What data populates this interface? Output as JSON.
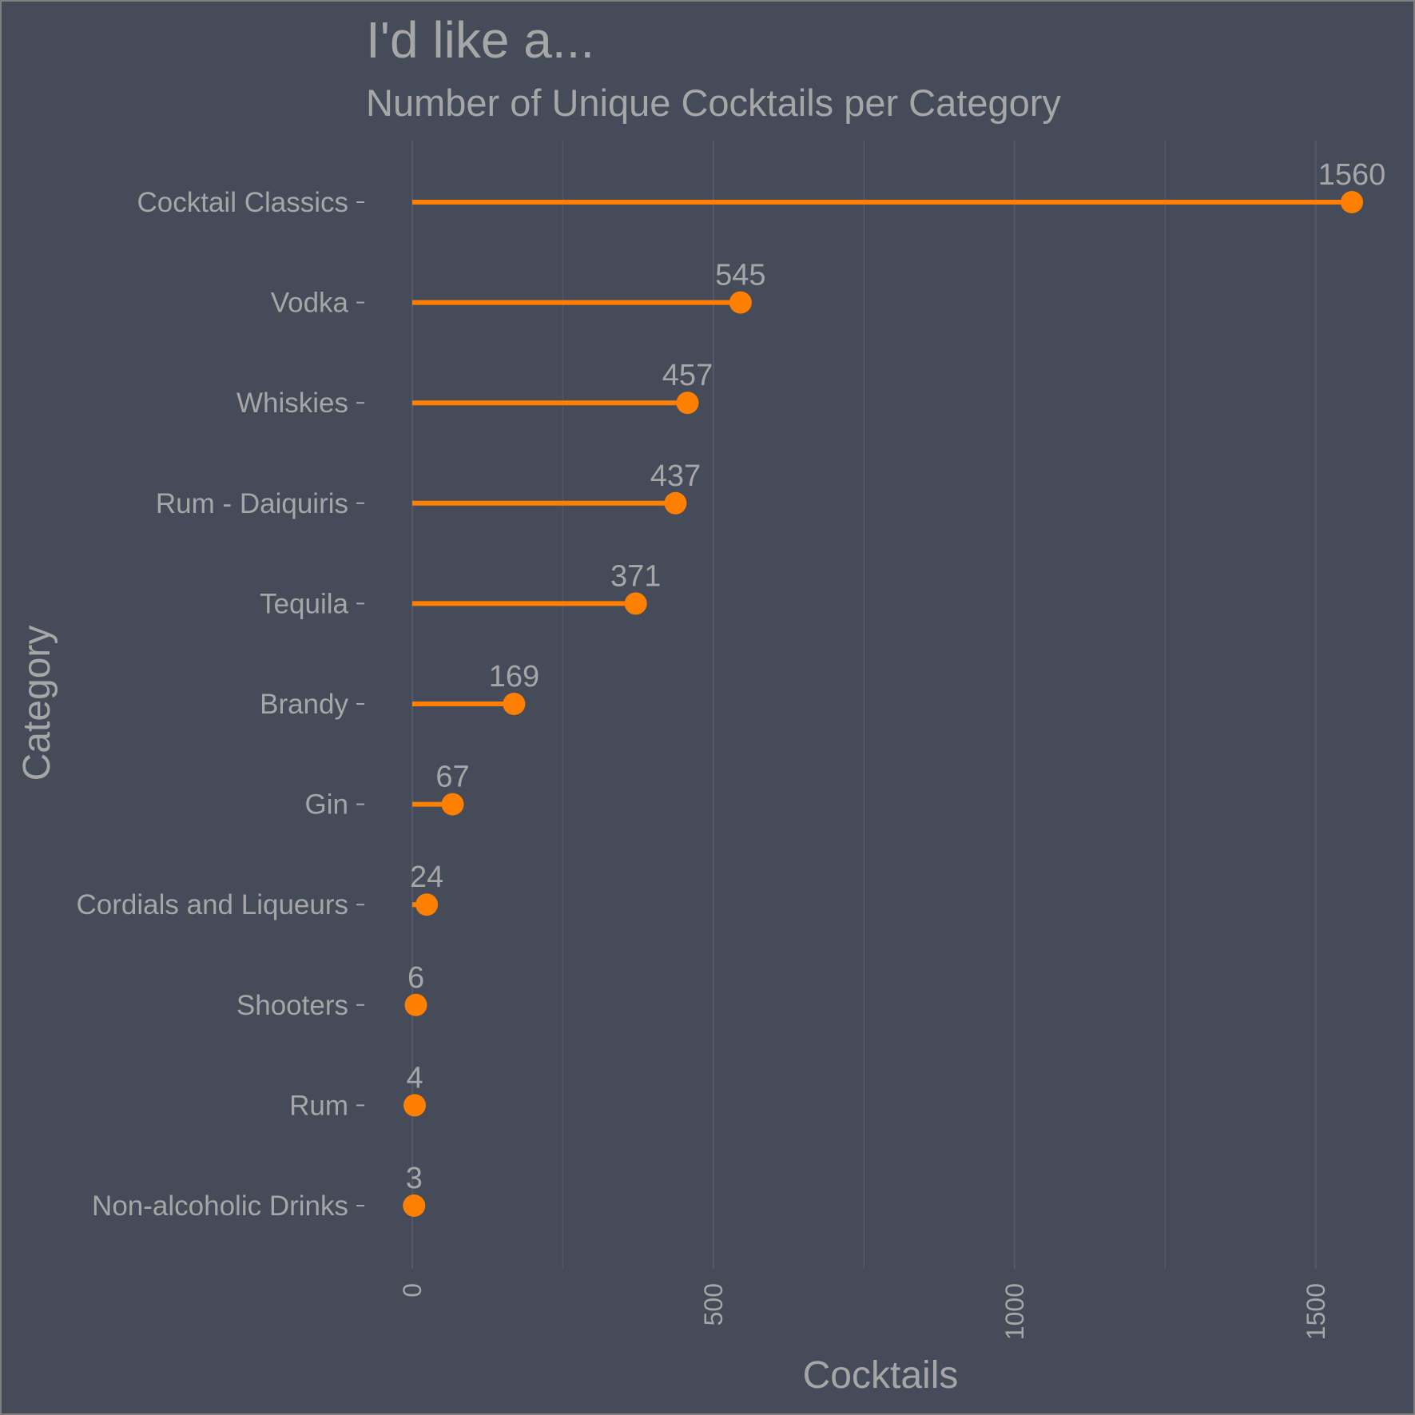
{
  "chart_data": {
    "type": "lollipop",
    "title": "I'd like a...",
    "subtitle": "Number of Unique Cocktails per Category",
    "xlabel": "Cocktails",
    "ylabel": "Category",
    "categories": [
      "Cocktail Classics",
      "Vodka",
      "Whiskies",
      "Rum - Daiquiris",
      "Tequila",
      "Brandy",
      "Gin",
      "Cordials and Liqueurs",
      "Shooters",
      "Rum",
      "Non-alcoholic Drinks"
    ],
    "values": [
      1560,
      545,
      457,
      437,
      371,
      169,
      67,
      24,
      6,
      4,
      3
    ],
    "xlim": [
      0,
      1620
    ],
    "xticks": [
      0,
      500,
      1000,
      1500
    ],
    "grid": "vertical",
    "colors": {
      "background": "#454b59",
      "point": "#ff7f00",
      "text": "#a6a6a6",
      "grid": "#535968",
      "frame": "#7f7f7f"
    }
  }
}
